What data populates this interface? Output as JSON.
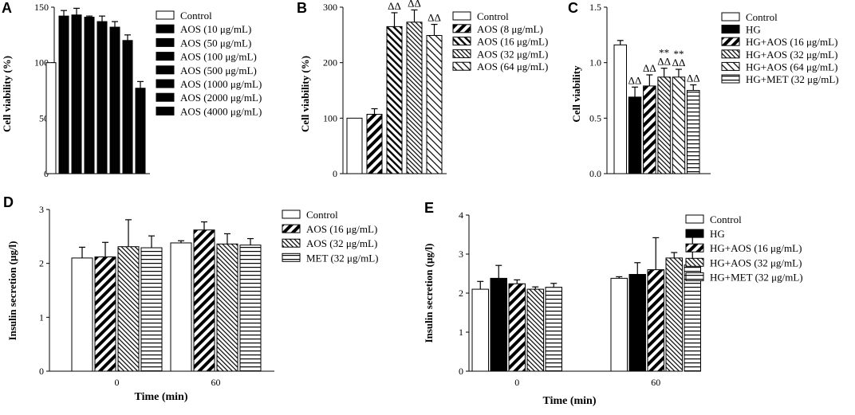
{
  "chart_data": [
    {
      "panel": "A",
      "type": "bar",
      "ylabel": "Cell viability (%)",
      "xlabel": "",
      "ylim": [
        0,
        150
      ],
      "yticks": [
        0,
        50,
        100,
        150
      ],
      "legend": [
        "Control",
        "AOS (10 μg/mL)",
        "AOS (50 μg/mL)",
        "AOS (100 μg/mL)",
        "AOS (500 μg/mL)",
        "AOS (1000 μg/mL)",
        "AOS (2000 μg/mL)",
        "AOS (4000 μg/mL)"
      ],
      "patterns": [
        "white",
        "black",
        "black",
        "black",
        "black",
        "black",
        "black",
        "black"
      ],
      "groups": [],
      "series": [
        {
          "values": [
            100,
            142,
            143,
            141,
            137,
            132,
            120,
            77
          ],
          "errors": [
            0,
            5,
            6,
            1,
            5,
            5,
            5,
            6
          ]
        }
      ],
      "annotations": []
    },
    {
      "panel": "B",
      "type": "bar",
      "ylabel": "Cell viability (%)",
      "xlabel": "",
      "ylim": [
        0,
        300
      ],
      "yticks": [
        0,
        100,
        200,
        300
      ],
      "legend": [
        "Control",
        "AOS (8 μg/mL)",
        "AOS (16 μg/mL)",
        "AOS (32 μg/mL)",
        "AOS (64 μg/mL)"
      ],
      "patterns": [
        "white",
        "diagbold",
        "diag",
        "diagthin",
        "diagwide"
      ],
      "groups": [],
      "series": [
        {
          "values": [
            100,
            107,
            265,
            273,
            249
          ],
          "errors": [
            0,
            10,
            25,
            22,
            20
          ]
        }
      ],
      "annotations": [
        "",
        "",
        "ΔΔ",
        "ΔΔ",
        "ΔΔ"
      ]
    },
    {
      "panel": "C",
      "type": "bar",
      "ylabel": "Cell viability",
      "xlabel": "",
      "ylim": [
        0,
        1.5
      ],
      "yticks": [
        "0.0",
        "0.5",
        "1.0",
        "1.5"
      ],
      "legend": [
        "Control",
        "HG",
        "HG+AOS (16 μg/mL)",
        "HG+AOS (32 μg/mL)",
        "HG+AOS (64 μg/mL)",
        "HG+MET (32 μg/mL)"
      ],
      "patterns": [
        "white",
        "black",
        "diagbold",
        "diagthin",
        "diagwide",
        "horiz"
      ],
      "groups": [],
      "series": [
        {
          "values": [
            1.16,
            0.69,
            0.79,
            0.87,
            0.87,
            0.75
          ],
          "errors": [
            0.04,
            0.09,
            0.1,
            0.08,
            0.07,
            0.05
          ]
        }
      ],
      "annotations": [
        "",
        "ΔΔ",
        "ΔΔ",
        "**\nΔΔ",
        "**\nΔΔ",
        "ΔΔ"
      ]
    },
    {
      "panel": "D",
      "type": "bar",
      "ylabel": "Insulin secretion (μg/l)",
      "xlabel": "Time (min)",
      "ylim": [
        0,
        3
      ],
      "yticks": [
        0,
        1,
        2,
        3
      ],
      "legend": [
        "Control",
        "AOS (16 μg/mL)",
        "AOS (32 μg/mL)",
        "MET (32 μg/mL)"
      ],
      "patterns": [
        "white",
        "diagbold",
        "diagthin",
        "horiz"
      ],
      "groups": [
        "0",
        "60"
      ],
      "series": [
        {
          "values": [
            2.1,
            2.38
          ],
          "errors": [
            0.2,
            0.04
          ]
        },
        {
          "values": [
            2.12,
            2.62
          ],
          "errors": [
            0.27,
            0.15
          ]
        },
        {
          "values": [
            2.31,
            2.36
          ],
          "errors": [
            0.5,
            0.19
          ]
        },
        {
          "values": [
            2.29,
            2.34
          ],
          "errors": [
            0.22,
            0.12
          ]
        }
      ],
      "annotations": []
    },
    {
      "panel": "E",
      "type": "bar",
      "ylabel": "Insulin secretion (μg/l)",
      "xlabel": "Time (min)",
      "ylim": [
        0,
        4
      ],
      "yticks": [
        0,
        1,
        2,
        3,
        4
      ],
      "legend": [
        "Control",
        "HG",
        "HG+AOS (16 μg/mL)",
        "HG+AOS (32 μg/mL)",
        "HG+MET (32 μg/mL)"
      ],
      "patterns": [
        "white",
        "black",
        "diagbold",
        "diagthin",
        "horiz"
      ],
      "groups": [
        "0",
        "60"
      ],
      "series": [
        {
          "values": [
            2.1,
            2.38
          ],
          "errors": [
            0.2,
            0.04
          ]
        },
        {
          "values": [
            2.38,
            2.48
          ],
          "errors": [
            0.33,
            0.3
          ]
        },
        {
          "values": [
            2.24,
            2.6
          ],
          "errors": [
            0.1,
            0.82
          ]
        },
        {
          "values": [
            2.1,
            2.9
          ],
          "errors": [
            0.06,
            0.14
          ]
        },
        {
          "values": [
            2.15,
            2.72
          ],
          "errors": [
            0.1,
            0.83
          ]
        }
      ],
      "annotations": []
    }
  ]
}
